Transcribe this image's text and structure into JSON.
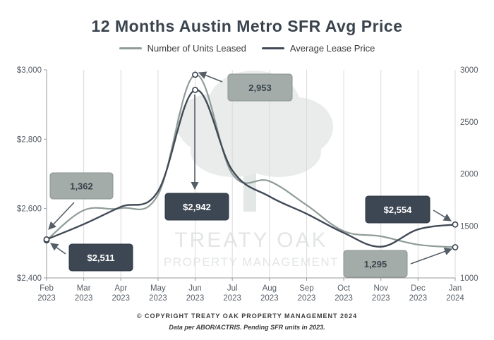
{
  "chart_data": {
    "type": "line",
    "title": "12 Months Austin Metro SFR Avg Price",
    "categories": [
      "Feb\n2023",
      "Mar\n2023",
      "Apr\n2023",
      "May\n2023",
      "Jun\n2023",
      "Jul\n2023",
      "Aug\n2023",
      "Sep\n2023",
      "Oct\n2023",
      "Nov\n2023",
      "Dec\n2023",
      "Jan\n2024"
    ],
    "y_left": {
      "ylim": [
        2400,
        3000
      ],
      "ticks": [
        "$2,400",
        "$2,600",
        "$2,800",
        "$3,000"
      ]
    },
    "y_right": {
      "ylim": [
        1000,
        3000
      ],
      "ticks": [
        "1000",
        "1500",
        "2000",
        "2500",
        "3000"
      ]
    },
    "series": [
      {
        "name": "Number of Units Leased",
        "axis": "right",
        "color": "#8f9c98",
        "values": [
          1362,
          1650,
          1670,
          1800,
          2953,
          2000,
          1930,
          1700,
          1450,
          1400,
          1320,
          1295
        ]
      },
      {
        "name": "Average Lease Price",
        "axis": "left",
        "color": "#414a56",
        "values": [
          2511,
          2555,
          2605,
          2650,
          2942,
          2710,
          2635,
          2585,
          2530,
          2490,
          2540,
          2554
        ]
      }
    ],
    "callouts": [
      {
        "text": "1,362",
        "series": 0,
        "point": 0,
        "style": "light"
      },
      {
        "text": "$2,511",
        "series": 1,
        "point": 0,
        "style": "dark"
      },
      {
        "text": "2,953",
        "series": 0,
        "point": 4,
        "style": "light"
      },
      {
        "text": "$2,942",
        "series": 1,
        "point": 4,
        "style": "dark"
      },
      {
        "text": "$2,554",
        "series": 1,
        "point": 11,
        "style": "dark"
      },
      {
        "text": "1,295",
        "series": 0,
        "point": 11,
        "style": "light"
      }
    ],
    "legend_position": "top-center",
    "grid": "vertical"
  },
  "watermark": {
    "line1": "TREATY OAK",
    "line2": "PROPERTY MANAGEMENT"
  },
  "footer": {
    "copyright": "© COPYRIGHT TREATY OAK PROPERTY MANAGEMENT 2024",
    "note": "Data per ABOR/ACTRIS. Pending SFR units in 2023."
  }
}
